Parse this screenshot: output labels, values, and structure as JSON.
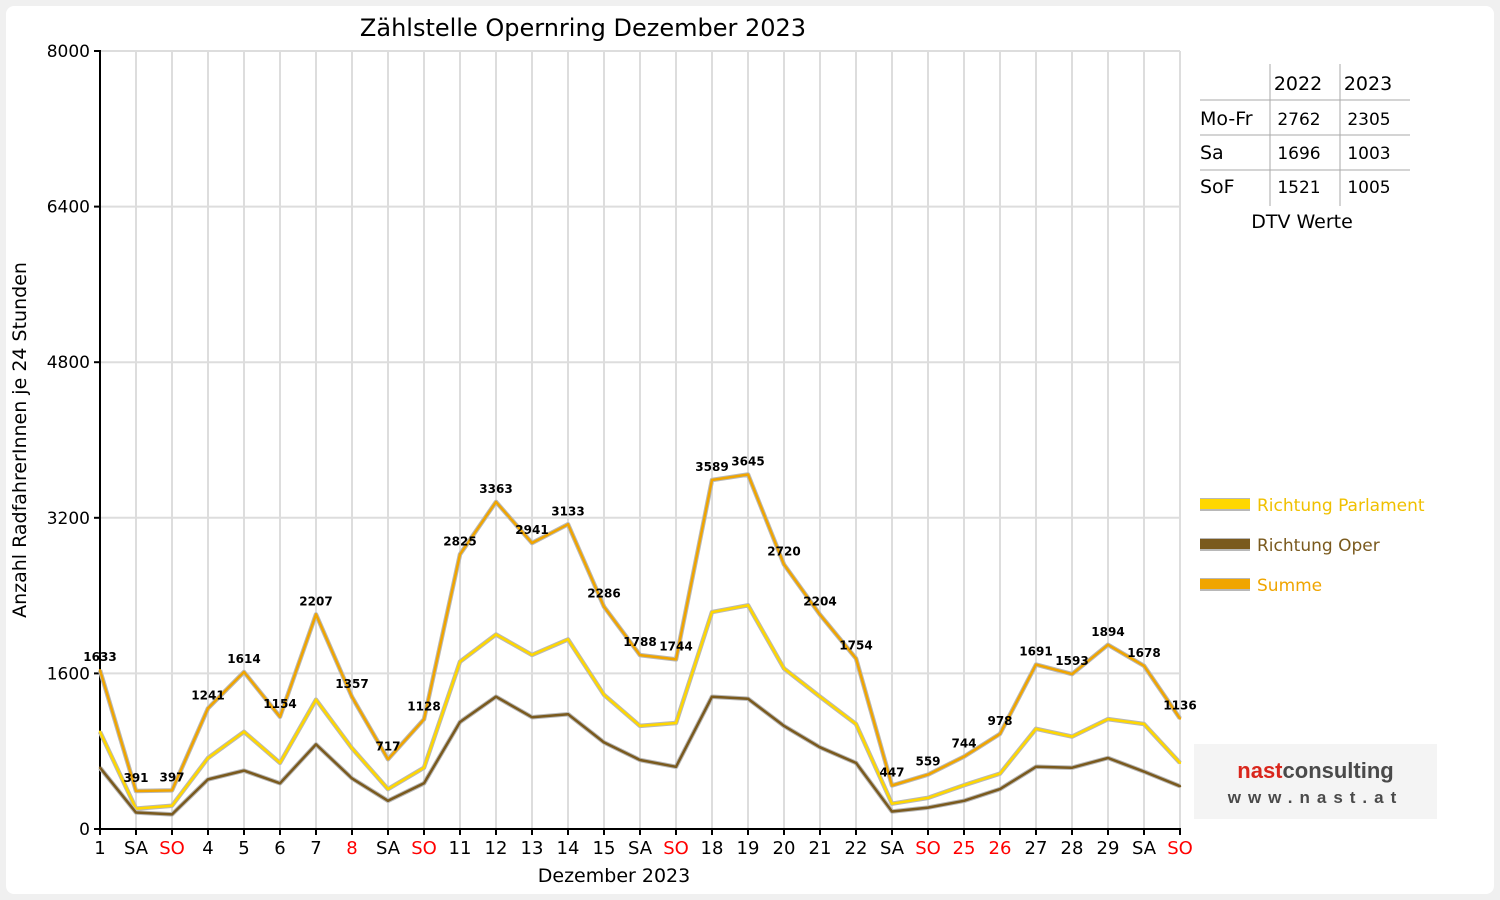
{
  "chart_data": {
    "type": "line",
    "title": "Zählstelle Opernring Dezember 2023",
    "xlabel": "Dezember 2023",
    "ylabel": "Anzahl RadfahrerInnen je 24 Stunden",
    "ylim": [
      0,
      8000
    ],
    "yticks": [
      "0",
      "1600",
      "3200",
      "4800",
      "6400",
      "8000"
    ],
    "grid": true,
    "legend_position": "right",
    "categories": [
      "1",
      "SA",
      "SO",
      "4",
      "5",
      "6",
      "7",
      "8",
      "SA",
      "SO",
      "11",
      "12",
      "13",
      "14",
      "15",
      "SA",
      "SO",
      "18",
      "19",
      "20",
      "21",
      "22",
      "SA",
      "SO",
      "25",
      "26",
      "27",
      "28",
      "29",
      "SA",
      "SO"
    ],
    "category_colors": [
      "#000000",
      "#000000",
      "#ff0000",
      "#000000",
      "#000000",
      "#000000",
      "#000000",
      "#ff0000",
      "#000000",
      "#ff0000",
      "#000000",
      "#000000",
      "#000000",
      "#000000",
      "#000000",
      "#000000",
      "#ff0000",
      "#000000",
      "#000000",
      "#000000",
      "#000000",
      "#000000",
      "#000000",
      "#ff0000",
      "#ff0000",
      "#ff0000",
      "#000000",
      "#000000",
      "#000000",
      "#000000",
      "#ff0000"
    ],
    "series": [
      {
        "name": "Richtung Parlament",
        "color": "#ffd700",
        "values": [
          1000,
          210,
          240,
          730,
          1000,
          680,
          1330,
          830,
          410,
          630,
          1720,
          2000,
          1790,
          1950,
          1380,
          1060,
          1090,
          2230,
          2300,
          1650,
          1360,
          1080,
          260,
          320,
          450,
          570,
          1030,
          950,
          1130,
          1080,
          680
        ]
      },
      {
        "name": "Richtung Oper",
        "color": "#7a5a1e",
        "values": [
          630,
          170,
          150,
          510,
          600,
          470,
          870,
          520,
          290,
          470,
          1100,
          1360,
          1150,
          1180,
          890,
          710,
          640,
          1360,
          1340,
          1060,
          840,
          680,
          180,
          220,
          290,
          410,
          640,
          630,
          730,
          590,
          440
        ]
      },
      {
        "name": "Summe",
        "color": "#f0a500",
        "values": [
          1633,
          391,
          397,
          1241,
          1614,
          1154,
          2207,
          1357,
          717,
          1128,
          2825,
          3363,
          2941,
          3133,
          2286,
          1788,
          1744,
          3589,
          3645,
          2720,
          2204,
          1754,
          447,
          559,
          744,
          978,
          1691,
          1593,
          1894,
          1678,
          1136
        ]
      }
    ],
    "data_labels": [
      "1633",
      "391",
      "397",
      "1241",
      "1614",
      "1154",
      "2207",
      "1357",
      "717",
      "1128",
      "2825",
      "3363",
      "2941",
      "3133",
      "2286",
      "1788",
      "1744",
      "3589",
      "3645",
      "2720",
      "2204",
      "1754",
      "447",
      "559",
      "744",
      "978",
      "1691",
      "1593",
      "1894",
      "1678",
      "1136"
    ]
  },
  "dtv_table": {
    "years": [
      "2022",
      "2023"
    ],
    "rows": [
      {
        "label": "Mo-Fr",
        "v2022": "2762",
        "v2023": "2305"
      },
      {
        "label": "Sa",
        "v2022": "1696",
        "v2023": "1003"
      },
      {
        "label": "SoF",
        "v2022": "1521",
        "v2023": "1005"
      }
    ],
    "caption": "DTV Werte"
  },
  "logo": {
    "name_part1": "nast",
    "name_part2": "consulting",
    "url": "www.nast.at"
  }
}
